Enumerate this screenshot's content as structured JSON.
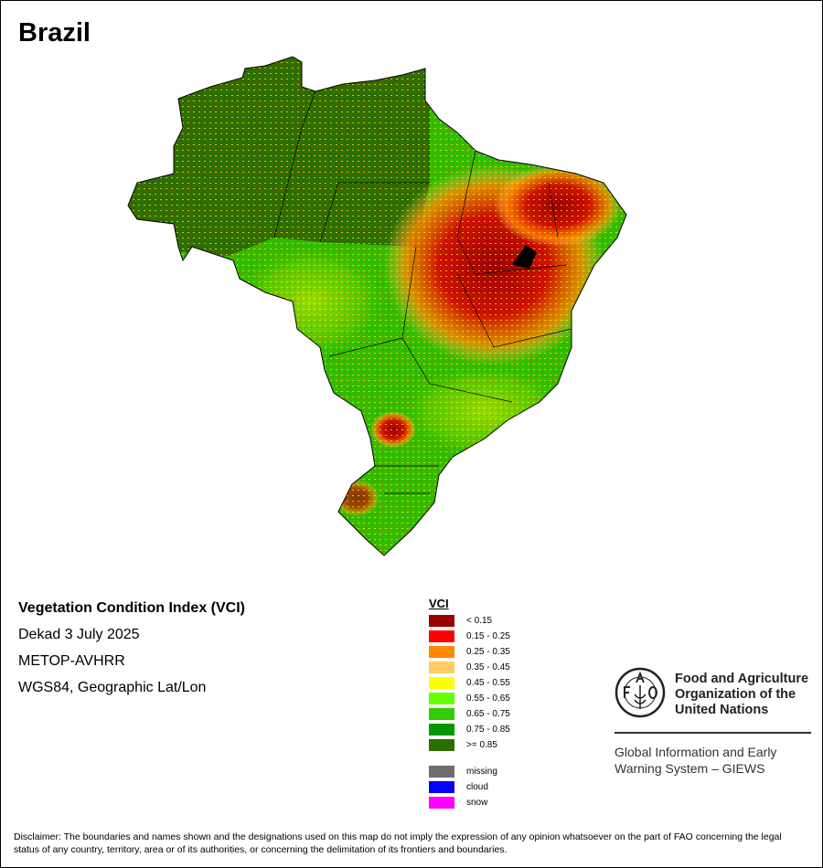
{
  "title": "Brazil",
  "info": {
    "index_name": "Vegetation Condition Index (VCI)",
    "period": "Dekad 3 July 2025",
    "sensor": "METOP-AVHRR",
    "projection": "WGS84, Geographic Lat/Lon"
  },
  "legend": {
    "title": "VCI",
    "classes": [
      {
        "label": "< 0.15",
        "color": "#990000"
      },
      {
        "label": "0.15 - 0.25",
        "color": "#ff0000"
      },
      {
        "label": "0.25 - 0.35",
        "color": "#ff8800"
      },
      {
        "label": "0.35 - 0.45",
        "color": "#ffcc66"
      },
      {
        "label": "0.45 - 0.55",
        "color": "#ffff00"
      },
      {
        "label": "0.55 - 0.65",
        "color": "#66ff00"
      },
      {
        "label": "0.65 - 0.75",
        "color": "#33cc00"
      },
      {
        "label": "0.75 - 0.85",
        "color": "#009900"
      },
      {
        "label": ">= 0.85",
        "color": "#2d6e00"
      }
    ],
    "special": [
      {
        "label": "missing",
        "color": "#6e6e6e"
      },
      {
        "label": "cloud",
        "color": "#0000ff"
      },
      {
        "label": "snow",
        "color": "#ff00ff"
      }
    ]
  },
  "logo": {
    "org_name": "Food and Agriculture Organization of the United Nations",
    "emblem_text": "FAO FIAT PANIS",
    "system": "Global Information and Early Warning System – GIEWS"
  },
  "disclaimer": "Disclaimer: The boundaries and names shown and the designations used on this map do not imply the expression of any opinion whatsoever on the part of FAO concerning the legal status of any country, territory, area or of its authorities, or concerning the delimitation of its frontiers and boundaries."
}
